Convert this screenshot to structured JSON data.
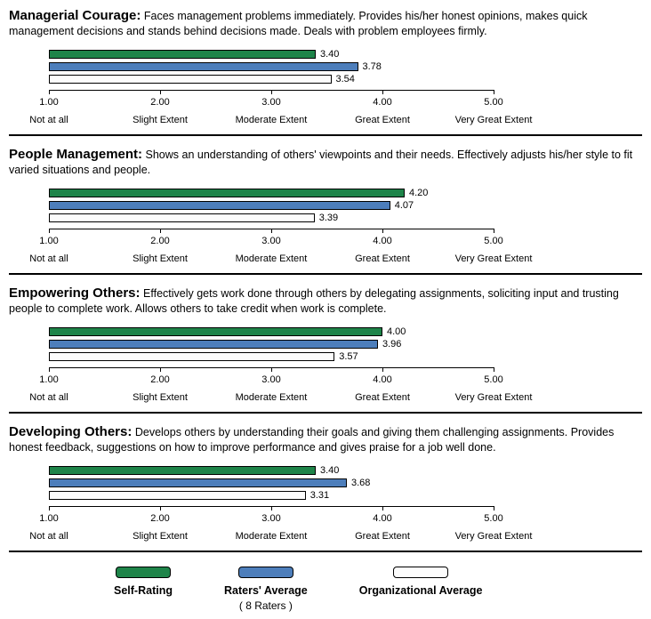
{
  "axis": {
    "min": 1,
    "max": 5,
    "ticks": [
      "1.00",
      "2.00",
      "3.00",
      "4.00",
      "5.00"
    ],
    "labels": [
      "Not at all",
      "Slight Extent",
      "Moderate Extent",
      "Great Extent",
      "Very Great Extent"
    ]
  },
  "colors": {
    "self_rating": "#1E8449",
    "raters_average": "#4D7EBB",
    "org_average": "#FCFCFC"
  },
  "chart_data": [
    {
      "type": "bar",
      "title": "Managerial Courage:",
      "description": "Faces management problems immediately. Provides his/her honest opinions, makes quick management decisions and stands behind decisions made. Deals with problem employees firmly.",
      "xlim": [
        1,
        5
      ],
      "x_tick_labels": [
        "1.00",
        "2.00",
        "3.00",
        "4.00",
        "5.00"
      ],
      "x_extent_labels": [
        "Not at all",
        "Slight Extent",
        "Moderate Extent",
        "Great Extent",
        "Very Great Extent"
      ],
      "series": [
        {
          "name": "Self-Rating",
          "value": 3.4,
          "label": "3.40"
        },
        {
          "name": "Raters' Average",
          "value": 3.78,
          "label": "3.78"
        },
        {
          "name": "Organizational Average",
          "value": 3.54,
          "label": "3.54"
        }
      ]
    },
    {
      "type": "bar",
      "title": "People Management:",
      "description": "Shows an understanding of others' viewpoints and their needs. Effectively adjusts his/her style to fit varied situations and people.",
      "xlim": [
        1,
        5
      ],
      "x_tick_labels": [
        "1.00",
        "2.00",
        "3.00",
        "4.00",
        "5.00"
      ],
      "x_extent_labels": [
        "Not at all",
        "Slight Extent",
        "Moderate Extent",
        "Great Extent",
        "Very Great Extent"
      ],
      "series": [
        {
          "name": "Self-Rating",
          "value": 4.2,
          "label": "4.20"
        },
        {
          "name": "Raters' Average",
          "value": 4.07,
          "label": "4.07"
        },
        {
          "name": "Organizational Average",
          "value": 3.39,
          "label": "3.39"
        }
      ]
    },
    {
      "type": "bar",
      "title": "Empowering Others:",
      "description": "Effectively gets work done through others by delegating assignments, soliciting input and trusting people to complete work. Allows others to take credit when work is complete.",
      "xlim": [
        1,
        5
      ],
      "x_tick_labels": [
        "1.00",
        "2.00",
        "3.00",
        "4.00",
        "5.00"
      ],
      "x_extent_labels": [
        "Not at all",
        "Slight Extent",
        "Moderate Extent",
        "Great Extent",
        "Very Great Extent"
      ],
      "series": [
        {
          "name": "Self-Rating",
          "value": 4.0,
          "label": "4.00"
        },
        {
          "name": "Raters' Average",
          "value": 3.96,
          "label": "3.96"
        },
        {
          "name": "Organizational Average",
          "value": 3.57,
          "label": "3.57"
        }
      ]
    },
    {
      "type": "bar",
      "title": "Developing Others:",
      "description": "Develops others by understanding their goals and giving them challenging assignments. Provides honest feedback, suggestions on how to improve performance and gives praise for a job well done.",
      "xlim": [
        1,
        5
      ],
      "x_tick_labels": [
        "1.00",
        "2.00",
        "3.00",
        "4.00",
        "5.00"
      ],
      "x_extent_labels": [
        "Not at all",
        "Slight Extent",
        "Moderate Extent",
        "Great Extent",
        "Very Great Extent"
      ],
      "series": [
        {
          "name": "Self-Rating",
          "value": 3.4,
          "label": "3.40"
        },
        {
          "name": "Raters' Average",
          "value": 3.68,
          "label": "3.68"
        },
        {
          "name": "Organizational Average",
          "value": 3.31,
          "label": "3.31"
        }
      ]
    }
  ],
  "legend": {
    "items": [
      {
        "label": "Self-Rating"
      },
      {
        "label": "Raters' Average",
        "note": "( 8 Raters )"
      },
      {
        "label": "Organizational Average"
      }
    ]
  }
}
